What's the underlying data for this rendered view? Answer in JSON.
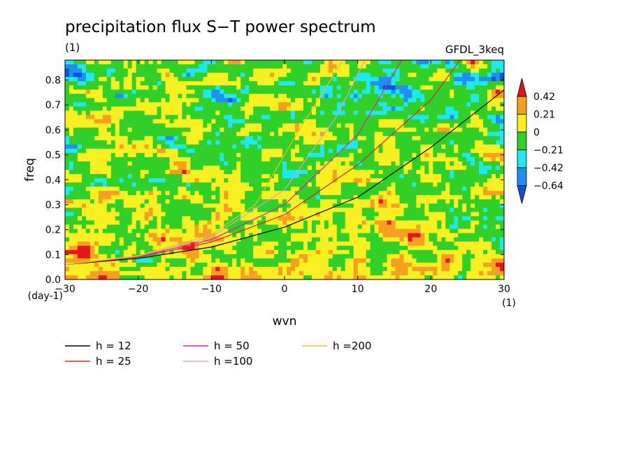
{
  "chart_data": {
    "type": "heatmap",
    "title": "precipitation flux S−T power spectrum",
    "units_label": "(1)",
    "model_label": "GFDL_3keq",
    "xlabel": "wvn",
    "ylabel": "freq",
    "x_unit_label": "(1)",
    "y_unit_label": "(day-1)",
    "xlim": [
      -30,
      30
    ],
    "ylim": [
      0.0,
      0.88
    ],
    "xticks": [
      -30,
      -20,
      -10,
      0,
      10,
      20,
      30
    ],
    "xtick_labels": [
      "−30",
      "−20",
      "−10",
      "0",
      "10",
      "20",
      "30"
    ],
    "yticks": [
      0.0,
      0.1,
      0.2,
      0.3,
      0.4,
      0.5,
      0.6,
      0.7,
      0.8
    ],
    "ytick_labels": [
      "0.0",
      "0.1",
      "0.2",
      "0.3",
      "0.4",
      "0.5",
      "0.6",
      "0.7",
      "0.8"
    ],
    "colorbar": {
      "levels": [
        "0.42",
        "0.21",
        "0",
        "−0.21",
        "−0.42",
        "−0.64"
      ],
      "colors": [
        "#e8141c",
        "#f5a020",
        "#f8f020",
        "#30d028",
        "#20e8f0",
        "#2090f0",
        "#1450e0"
      ]
    },
    "dispersion_curves": [
      {
        "label": "h = 12",
        "h": 12,
        "color": "#000000",
        "points": [
          [
            -30,
            0.06
          ],
          [
            -20,
            0.085
          ],
          [
            -10,
            0.13
          ],
          [
            0,
            0.21
          ],
          [
            10,
            0.33
          ],
          [
            20,
            0.53
          ],
          [
            30,
            0.76
          ]
        ]
      },
      {
        "label": "h = 25",
        "h": 25,
        "color": "#e02020",
        "points": [
          [
            -30,
            0.06
          ],
          [
            -20,
            0.09
          ],
          [
            -10,
            0.15
          ],
          [
            0,
            0.26
          ],
          [
            10,
            0.46
          ],
          [
            20,
            0.72
          ],
          [
            24,
            0.88
          ]
        ]
      },
      {
        "label": "h = 50",
        "h": 50,
        "color": "#d020c0",
        "points": [
          [
            -30,
            0.06
          ],
          [
            -20,
            0.092
          ],
          [
            -10,
            0.16
          ],
          [
            0,
            0.3
          ],
          [
            10,
            0.58
          ],
          [
            16,
            0.88
          ]
        ]
      },
      {
        "label": "h =100",
        "h": 100,
        "color": "#d8a0e0",
        "points": [
          [
            -30,
            0.06
          ],
          [
            -20,
            0.094
          ],
          [
            -10,
            0.17
          ],
          [
            0,
            0.36
          ],
          [
            7,
            0.65
          ],
          [
            11,
            0.88
          ]
        ]
      },
      {
        "label": "h =200",
        "h": 200,
        "color": "#f0c020",
        "points": [
          [
            -30,
            0.06
          ],
          [
            -20,
            0.095
          ],
          [
            -10,
            0.18
          ],
          [
            -4,
            0.3
          ],
          [
            2,
            0.6
          ],
          [
            8,
            0.88
          ]
        ]
      }
    ],
    "grid": false,
    "legend_placement": "bottom"
  }
}
